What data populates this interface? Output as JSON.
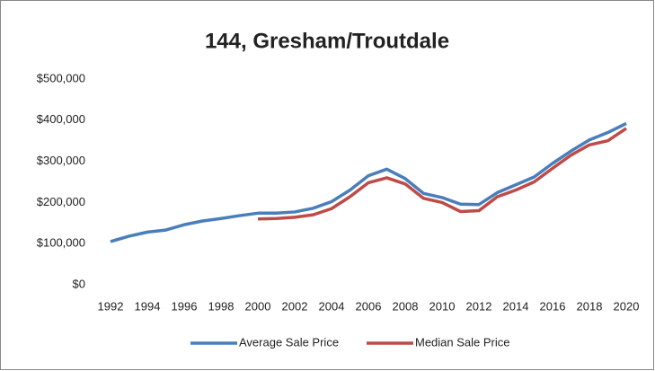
{
  "chart_data": {
    "type": "line",
    "title": "144, Gresham/Troutdale",
    "x": [
      1992,
      1993,
      1994,
      1995,
      1996,
      1997,
      1998,
      1999,
      2000,
      2001,
      2002,
      2003,
      2004,
      2005,
      2006,
      2007,
      2008,
      2009,
      2010,
      2011,
      2012,
      2013,
      2014,
      2015,
      2016,
      2017,
      2018,
      2019,
      2020
    ],
    "xlim": [
      1992,
      2020
    ],
    "xticks": [
      1992,
      1994,
      1996,
      1998,
      2000,
      2002,
      2004,
      2006,
      2008,
      2010,
      2012,
      2014,
      2016,
      2018,
      2020
    ],
    "ylim": [
      0,
      500000
    ],
    "yticks": [
      {
        "value": 0,
        "label": "$0"
      },
      {
        "value": 100000,
        "label": "$100,000"
      },
      {
        "value": 200000,
        "label": "$200,000"
      },
      {
        "value": 300000,
        "label": "$300,000"
      },
      {
        "value": 400000,
        "label": "$400,000"
      },
      {
        "value": 500000,
        "label": "$500,000"
      }
    ],
    "grid": false,
    "legend": "bottom",
    "series": [
      {
        "name": "Average Sale Price",
        "color": "#4a7ebb",
        "values": [
          105000,
          118000,
          128000,
          133000,
          146000,
          155000,
          161000,
          168000,
          174000,
          174000,
          177000,
          186000,
          202000,
          230000,
          265000,
          281000,
          258000,
          222000,
          212000,
          196000,
          195000,
          224000,
          243000,
          262000,
          295000,
          325000,
          352000,
          370000,
          392000
        ]
      },
      {
        "name": "Median Sale Price",
        "color": "#be4b48",
        "values": [
          null,
          null,
          null,
          null,
          null,
          null,
          null,
          null,
          160000,
          161000,
          164000,
          170000,
          185000,
          214000,
          248000,
          260000,
          245000,
          210000,
          200000,
          178000,
          180000,
          214000,
          230000,
          250000,
          283000,
          315000,
          340000,
          350000,
          380000
        ]
      }
    ]
  }
}
